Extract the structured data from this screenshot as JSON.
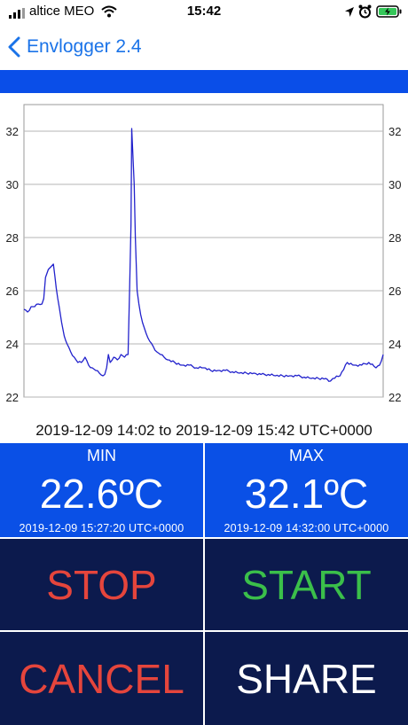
{
  "status_bar": {
    "carrier": "altice MEO",
    "time": "15:42",
    "signal_icon": "signal-bars-icon",
    "wifi_icon": "wifi-icon",
    "location_icon": "location-arrow-icon",
    "alarm_icon": "alarm-clock-icon",
    "battery_icon": "battery-charging-icon"
  },
  "nav": {
    "back_label": "Envlogger 2.4",
    "back_icon": "chevron-left-icon"
  },
  "colors": {
    "accent": "#0a4ee8",
    "tile_blue": "#0a50e6",
    "tile_dark": "#0c1a4d",
    "stop_red": "#e5453c",
    "start_green": "#3bbf4a",
    "cancel_red": "#e5453c",
    "share_white": "#ffffff",
    "line": "#2222cc"
  },
  "chart_data": {
    "type": "line",
    "ylim": [
      22,
      33
    ],
    "yticks": [
      22,
      24,
      26,
      28,
      30,
      32
    ],
    "grid": true,
    "x_range": [
      "14:02",
      "15:42"
    ],
    "series": [
      {
        "minutes": [
          0,
          1,
          2,
          3,
          4,
          5,
          5.5,
          6,
          6.8,
          7.5,
          8.2,
          9,
          9.8,
          10.5,
          11.2,
          12,
          13,
          14,
          15,
          16,
          17,
          18,
          19,
          20,
          21,
          22,
          22.5,
          23,
          23.5,
          24,
          25,
          26,
          27,
          28,
          29,
          29.8,
          30,
          30.7,
          31,
          31.5,
          32,
          32.5,
          33,
          33.5,
          34,
          35,
          36,
          37,
          38,
          39,
          40,
          42,
          44,
          46,
          48,
          50,
          52,
          54,
          56,
          58,
          60,
          62,
          64,
          66,
          68,
          70,
          72,
          74,
          76,
          78,
          80,
          82,
          84,
          85.3,
          86,
          88,
          90,
          92,
          94,
          96,
          98,
          99,
          100
        ],
        "values": [
          25.3,
          25.2,
          25.4,
          25.4,
          25.5,
          25.5,
          25.7,
          26.5,
          26.8,
          26.9,
          27.0,
          26.1,
          25.4,
          24.8,
          24.3,
          24.0,
          23.7,
          23.5,
          23.3,
          23.3,
          23.5,
          23.2,
          23.1,
          23.0,
          22.9,
          22.8,
          22.85,
          23.1,
          23.6,
          23.3,
          23.5,
          23.4,
          23.6,
          23.5,
          23.6,
          28.5,
          32.1,
          30.0,
          28.0,
          26.0,
          25.5,
          25.1,
          24.8,
          24.6,
          24.4,
          24.1,
          23.9,
          23.7,
          23.6,
          23.5,
          23.4,
          23.3,
          23.2,
          23.2,
          23.1,
          23.1,
          23.0,
          23.0,
          23.0,
          22.95,
          22.9,
          22.9,
          22.9,
          22.85,
          22.85,
          22.8,
          22.8,
          22.8,
          22.8,
          22.75,
          22.7,
          22.7,
          22.7,
          22.6,
          22.7,
          22.8,
          23.3,
          23.2,
          23.2,
          23.3,
          23.1,
          23.2,
          23.6
        ]
      }
    ]
  },
  "range_text": "2019-12-09 14:02 to 2019-12-09 15:42 UTC+0000",
  "min": {
    "label": "MIN",
    "value": "22.6ºC",
    "time": "2019-12-09 15:27:20 UTC+0000"
  },
  "max": {
    "label": "MAX",
    "value": "32.1ºC",
    "time": "2019-12-09 14:32:00 UTC+0000"
  },
  "buttons": {
    "stop": "STOP",
    "start": "START",
    "cancel": "CANCEL",
    "share": "SHARE"
  }
}
